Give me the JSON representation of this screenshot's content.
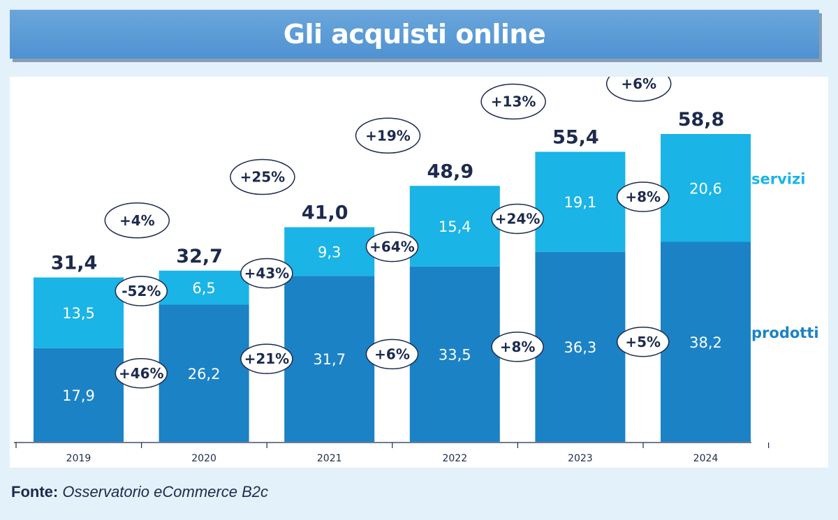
{
  "title": "Gli acquisti online",
  "source": {
    "label": "Fonte:",
    "text": "Osservatorio eCommerce B2c"
  },
  "colors": {
    "prodotti": "#1b82c5",
    "servizi": "#1ab4e6",
    "total_text": "#1d2a4d",
    "servizi_label": "#1ab4e6",
    "prodotti_label": "#1b82c5"
  },
  "chart_data": {
    "type": "bar",
    "stacked": true,
    "categories": [
      "2019",
      "2020",
      "2021",
      "2022",
      "2023",
      "2024"
    ],
    "series": [
      {
        "name": "prodotti",
        "values": [
          17.9,
          26.2,
          31.7,
          33.5,
          36.3,
          38.2
        ],
        "labels": [
          "17,9",
          "26,2",
          "31,7",
          "33,5",
          "36,3",
          "38,2"
        ]
      },
      {
        "name": "servizi",
        "values": [
          13.5,
          6.5,
          9.3,
          15.4,
          19.1,
          20.6
        ],
        "labels": [
          "13,5",
          "6,5",
          "9,3",
          "15,4",
          "19,1",
          "20,6"
        ]
      }
    ],
    "totals": [
      31.4,
      32.7,
      41.0,
      48.9,
      55.4,
      58.8
    ],
    "total_labels": [
      "31,4",
      "32,7",
      "41,0",
      "48,9",
      "55,4",
      "58,8"
    ],
    "growth_total": [
      "+4%",
      "+25%",
      "+19%",
      "+13%",
      "+6%"
    ],
    "growth_servizi": [
      "-52%",
      "+43%",
      "+64%",
      "+24%",
      "+8%"
    ],
    "growth_prodotti": [
      "+46%",
      "+21%",
      "+6%",
      "+8%",
      "+5%"
    ],
    "ylim": [
      0,
      62
    ],
    "legend": [
      "servizi",
      "prodotti"
    ],
    "legend_position": "right"
  }
}
